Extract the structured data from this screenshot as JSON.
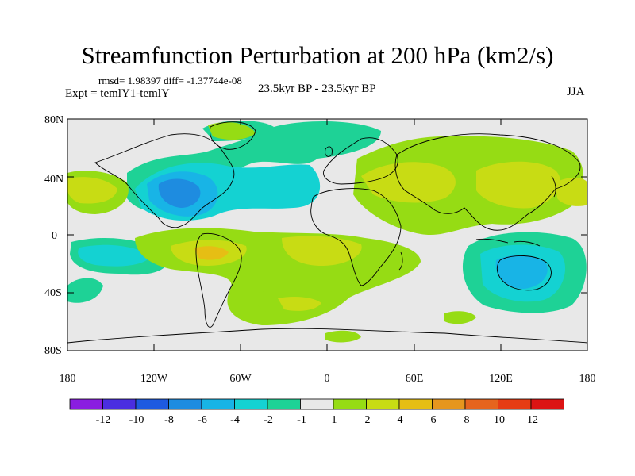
{
  "title": "Streamfunction Perturbation at 200 hPa (km2/s)",
  "stats": {
    "rmsd_label": "rmsd= 1.98397 diff= -1.37744e-08"
  },
  "expt_label": "Expt = temlY1-temlY",
  "period_label": "23.5kyr BP - 23.5kyr BP",
  "season_label": "JJA",
  "axes": {
    "lat_ticks": [
      "80N",
      "40N",
      "0",
      "40S",
      "80S"
    ],
    "lon_ticks": [
      "180",
      "120W",
      "60W",
      "0",
      "60E",
      "120E",
      "180"
    ]
  },
  "colorbar": {
    "labels": [
      "-12",
      "-10",
      "-8",
      "-6",
      "-4",
      "-2",
      "-1",
      "1",
      "2",
      "4",
      "6",
      "8",
      "10",
      "12"
    ],
    "colors": [
      "#8a1ee0",
      "#4a2ee0",
      "#1e5ae0",
      "#1e8ce0",
      "#18b4e6",
      "#14d2d2",
      "#1ed296",
      "#e8e8e8",
      "#96dc14",
      "#c8dc14",
      "#e6be14",
      "#e6961e",
      "#e6641e",
      "#e63c14",
      "#dc1414"
    ]
  },
  "field_colors": {
    "neg1": "#1ed296",
    "neg2": "#14d2d2",
    "neg4": "#18b4e6",
    "neg6": "#1e8ce0",
    "pos1": "#96dc14",
    "pos2": "#c8dc14",
    "pos4": "#e6be14",
    "neutral": "#e8e8e8"
  }
}
